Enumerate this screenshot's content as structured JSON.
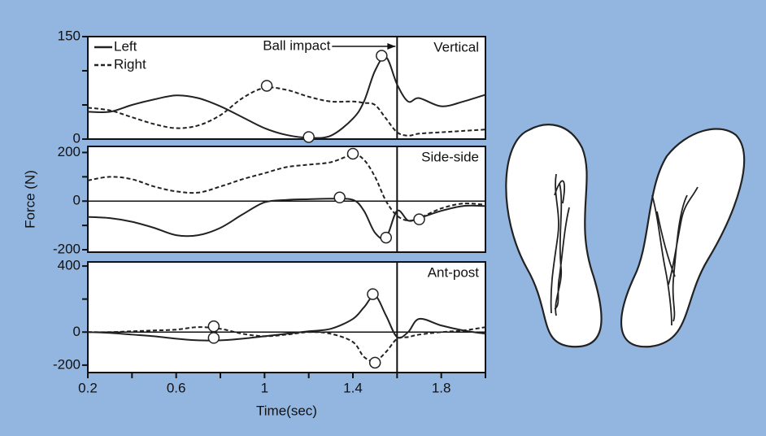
{
  "chart_data": [
    {
      "type": "line",
      "title": "Vertical",
      "x": [
        0.2,
        0.3,
        0.4,
        0.5,
        0.6,
        0.7,
        0.8,
        0.9,
        1.0,
        1.1,
        1.2,
        1.3,
        1.4,
        1.45,
        1.5,
        1.55,
        1.6,
        1.65,
        1.7,
        1.8,
        1.9,
        2.0
      ],
      "series": [
        {
          "name": "Left",
          "color": "#222222",
          "style": "solid",
          "values": [
            40,
            40,
            50,
            58,
            64,
            60,
            48,
            32,
            16,
            6,
            2,
            5,
            30,
            55,
            100,
            120,
            80,
            55,
            60,
            48,
            55,
            65
          ],
          "marker_x": [
            1.2,
            1.53
          ],
          "marker_y": [
            3,
            122
          ]
        },
        {
          "name": "Right",
          "color": "#222222",
          "style": "dashed",
          "values": [
            46,
            42,
            32,
            22,
            16,
            20,
            35,
            60,
            75,
            72,
            62,
            55,
            55,
            53,
            50,
            30,
            10,
            5,
            8,
            10,
            12,
            14
          ],
          "marker_x": [
            1.01
          ],
          "marker_y": [
            78
          ]
        }
      ],
      "xlim": [
        0.2,
        2.0
      ],
      "ylim": [
        0,
        150
      ],
      "yticks": [
        0,
        150
      ],
      "minor_yticks": [
        50,
        100
      ],
      "legend": "upper left",
      "vline": 1.6,
      "annotation": {
        "text": "Ball impact",
        "x": 1.6
      }
    },
    {
      "type": "line",
      "title": "Side-side",
      "ylabel": "Force (N)",
      "x": [
        0.2,
        0.3,
        0.4,
        0.5,
        0.6,
        0.7,
        0.8,
        0.9,
        1.0,
        1.1,
        1.2,
        1.3,
        1.4,
        1.45,
        1.5,
        1.55,
        1.6,
        1.65,
        1.7,
        1.8,
        1.9,
        2.0
      ],
      "series": [
        {
          "name": "Left",
          "color": "#222222",
          "style": "solid",
          "values": [
            -65,
            -70,
            -85,
            -110,
            -140,
            -140,
            -110,
            -55,
            -5,
            5,
            8,
            10,
            5,
            -40,
            -130,
            -150,
            -40,
            -80,
            -70,
            -40,
            -20,
            -20
          ],
          "marker_x": [
            1.34,
            1.55
          ],
          "marker_y": [
            15,
            -150
          ]
        },
        {
          "name": "Right",
          "color": "#222222",
          "style": "dashed",
          "values": [
            85,
            100,
            90,
            60,
            40,
            35,
            60,
            90,
            115,
            140,
            150,
            160,
            190,
            170,
            100,
            0,
            -60,
            -80,
            -70,
            -30,
            -10,
            -15
          ],
          "marker_x": [
            1.4,
            1.7
          ],
          "marker_y": [
            195,
            -75
          ]
        }
      ],
      "xlim": [
        0.2,
        2.0
      ],
      "ylim": [
        -210,
        225
      ],
      "yticks": [
        -200,
        0,
        200
      ],
      "minor_yticks": [
        -100,
        100
      ],
      "hline": 0,
      "vline": 1.6
    },
    {
      "type": "line",
      "title": "Ant-post",
      "xlabel": "Time(sec)",
      "x": [
        0.2,
        0.3,
        0.4,
        0.5,
        0.6,
        0.7,
        0.8,
        0.9,
        1.0,
        1.1,
        1.2,
        1.3,
        1.4,
        1.45,
        1.5,
        1.55,
        1.6,
        1.65,
        1.7,
        1.8,
        1.9,
        2.0
      ],
      "series": [
        {
          "name": "Left",
          "color": "#222222",
          "style": "solid",
          "values": [
            0,
            -5,
            -15,
            -25,
            -40,
            -50,
            -50,
            -40,
            -25,
            -10,
            5,
            20,
            80,
            150,
            220,
            100,
            -30,
            0,
            80,
            40,
            10,
            -10
          ],
          "marker_x": [
            0.77,
            1.49
          ],
          "marker_y": [
            -35,
            230
          ]
        },
        {
          "name": "Right",
          "color": "#222222",
          "style": "dashed",
          "values": [
            0,
            0,
            5,
            10,
            15,
            30,
            20,
            -10,
            -25,
            -15,
            0,
            -10,
            -60,
            -150,
            -175,
            -120,
            -40,
            -30,
            -15,
            0,
            10,
            30
          ],
          "marker_x": [
            0.77,
            1.5
          ],
          "marker_y": [
            35,
            -185
          ]
        }
      ],
      "xlim": [
        0.2,
        2.0
      ],
      "ylim": [
        -245,
        425
      ],
      "yticks": [
        -200,
        0,
        400
      ],
      "minor_yticks": [
        200
      ],
      "xticks": [
        0.2,
        0.6,
        1.0,
        1.4,
        1.8
      ],
      "minor_xticks": [
        0.4,
        0.8,
        1.2,
        1.6,
        2.0
      ],
      "hline": 0,
      "vline": 1.6
    }
  ]
}
